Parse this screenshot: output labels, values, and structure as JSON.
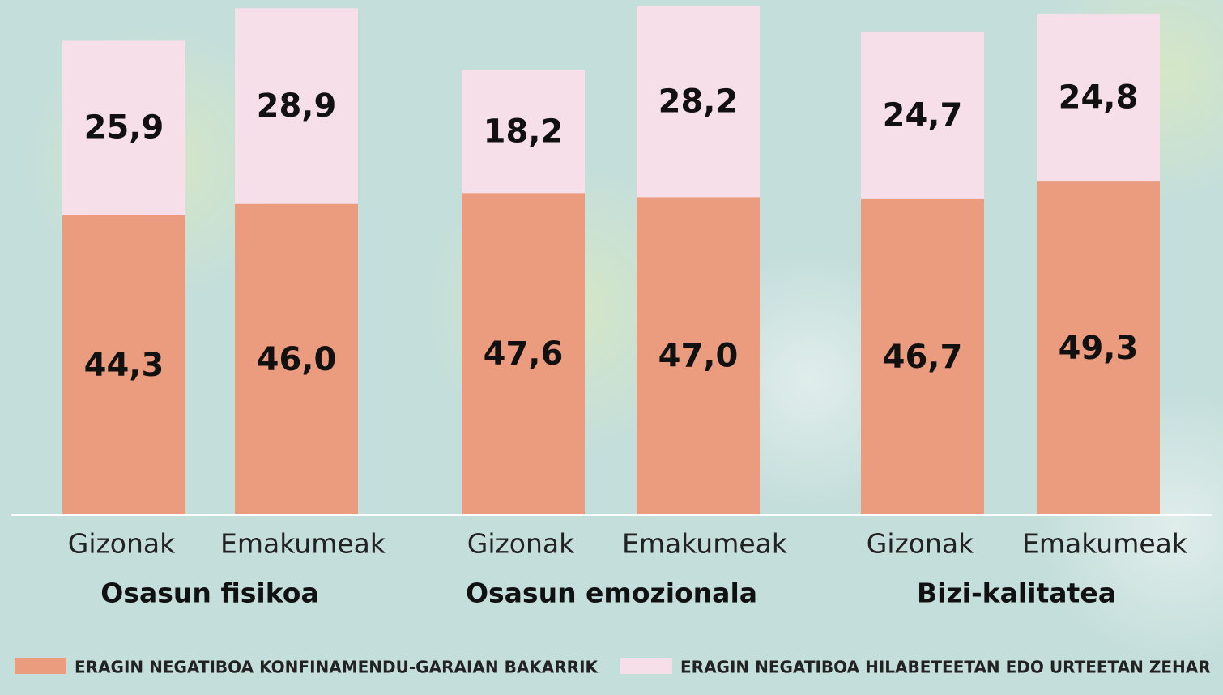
{
  "chart_data": {
    "type": "stacked-bar",
    "categories": [
      "Gizonak",
      "Emakumeak",
      "Gizonak",
      "Emakumeak",
      "Gizonak",
      "Emakumeak"
    ],
    "groups": [
      "Osasun fisikoa",
      "Osasun emozionala",
      "Bizi-kalitatea"
    ],
    "series": [
      {
        "name": "ERAGIN NEGATIBOA KONFINAMENDU-GARAIAN BAKARRIK",
        "color": "#eb9b7e",
        "values": [
          44.3,
          46.0,
          47.6,
          47.0,
          46.7,
          49.3
        ],
        "value_labels": [
          "44,3",
          "46,0",
          "47,6",
          "47,0",
          "46,7",
          "49,3"
        ]
      },
      {
        "name": "ERAGIN NEGATIBOA HILABETEETAN EDO URTEETAN ZEHAR",
        "color": "#f7dfea",
        "values": [
          25.9,
          28.9,
          18.2,
          28.2,
          24.7,
          24.8
        ],
        "value_labels": [
          "25,9",
          "28,9",
          "18,2",
          "28,2",
          "24,7",
          "24,8"
        ]
      }
    ],
    "ylim": [
      0,
      76
    ]
  }
}
